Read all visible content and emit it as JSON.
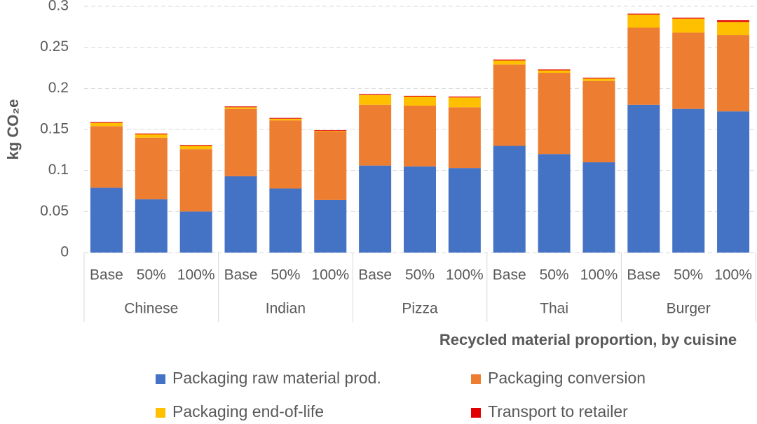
{
  "chart_data": {
    "type": "stacked_bar",
    "y_label": "kg CO₂e",
    "x_label": "Recycled material proportion, by cuisine",
    "categories": [
      "Base",
      "50%",
      "100%",
      "Base",
      "50%",
      "100%",
      "Base",
      "50%",
      "100%",
      "Base",
      "50%",
      "100%",
      "Base",
      "50%",
      "100%"
    ],
    "groups": [
      "Chinese",
      "Indian",
      "Pizza",
      "Thai",
      "Burger"
    ],
    "ylim": [
      0,
      0.3
    ],
    "yticks": [
      0,
      0.05,
      0.1,
      0.15,
      0.2,
      0.25,
      0.3
    ],
    "grid": true,
    "legend": "bottom",
    "series": [
      {
        "name": "Packaging raw material prod.",
        "color": "#4472c4",
        "values": [
          0.079,
          0.065,
          0.05,
          0.093,
          0.078,
          0.064,
          0.106,
          0.105,
          0.103,
          0.13,
          0.12,
          0.11,
          0.18,
          0.175,
          0.172
        ]
      },
      {
        "name": "Packaging conversion",
        "color": "#ed7d31",
        "values": [
          0.075,
          0.075,
          0.076,
          0.082,
          0.083,
          0.083,
          0.074,
          0.074,
          0.074,
          0.099,
          0.099,
          0.099,
          0.094,
          0.093,
          0.093
        ]
      },
      {
        "name": "Packaging end-of-life",
        "color": "#ffc000",
        "values": [
          0.004,
          0.004,
          0.004,
          0.002,
          0.002,
          0.001,
          0.012,
          0.011,
          0.012,
          0.005,
          0.003,
          0.003,
          0.016,
          0.017,
          0.016
        ]
      },
      {
        "name": "Transport to retailer",
        "color": "#e00000",
        "values": [
          0.001,
          0.001,
          0.001,
          0.001,
          0.001,
          0.001,
          0.001,
          0.001,
          0.001,
          0.001,
          0.001,
          0.001,
          0.001,
          0.001,
          0.002
        ]
      }
    ]
  }
}
